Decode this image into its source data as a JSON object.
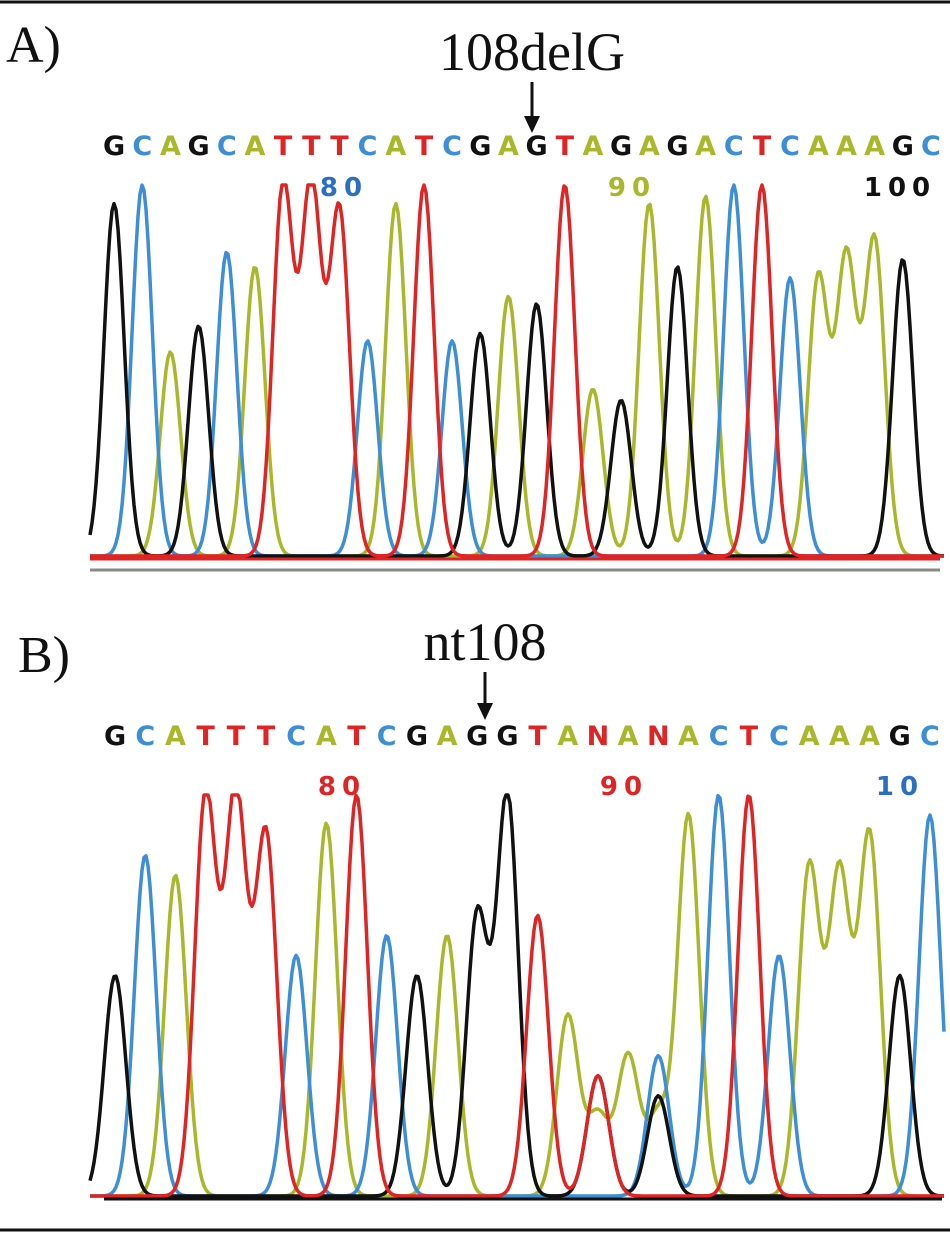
{
  "colors": {
    "A": "#a8b82a",
    "C": "#3c8fd6",
    "G": "#111111",
    "T": "#e02424",
    "N": "#e02424"
  },
  "panels": [
    {
      "label": "A)",
      "mutation_label": "108delG",
      "sequence": [
        "G",
        "C",
        "A",
        "G",
        "C",
        "A",
        "T",
        "T",
        "T",
        "C",
        "A",
        "T",
        "C",
        "G",
        "A",
        "G",
        "T",
        "A",
        "G",
        "A",
        "G",
        "A",
        "C",
        "T",
        "C",
        "A",
        "A",
        "A",
        "G",
        "C"
      ],
      "ticks": [
        {
          "text": "80",
          "color": "#2a6fc4"
        },
        {
          "text": "90",
          "color": "#a8b82a"
        },
        {
          "text": "100",
          "color": "#111111"
        }
      ]
    },
    {
      "label": "B)",
      "mutation_label": "nt108",
      "sequence": [
        "G",
        "C",
        "A",
        "T",
        "T",
        "T",
        "C",
        "A",
        "T",
        "C",
        "G",
        "A",
        "G",
        "G",
        "T",
        "A",
        "N",
        "A",
        "N",
        "A",
        "C",
        "T",
        "C",
        "A",
        "A",
        "A",
        "G",
        "C"
      ],
      "ticks": [
        {
          "text": "80",
          "color": "#e02424"
        },
        {
          "text": "90",
          "color": "#e02424"
        },
        {
          "text": "10",
          "color": "#2a6fc4"
        }
      ]
    }
  ]
}
